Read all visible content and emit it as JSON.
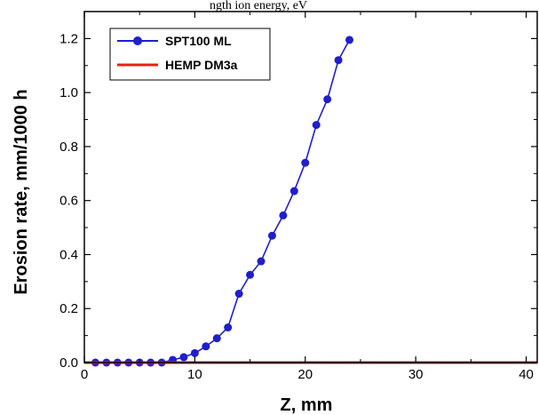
{
  "chart_data": {
    "type": "line",
    "title": "",
    "top_caption": "ngth  ion energy, eV",
    "xlabel": "Z, mm",
    "ylabel": "Erosion rate, mm/1000 h",
    "xlim": [
      0,
      41
    ],
    "ylim": [
      0,
      1.3
    ],
    "xticks": [
      0,
      10,
      20,
      30,
      40
    ],
    "yticks": [
      0.0,
      0.2,
      0.4,
      0.6,
      0.8,
      1.0,
      1.2
    ],
    "xtick_labels": [
      "0",
      "10",
      "20",
      "30",
      "40"
    ],
    "ytick_labels": [
      "0.0",
      "0.2",
      "0.4",
      "0.6",
      "0.8",
      "1.0",
      "1.2"
    ],
    "grid": false,
    "legend_position": "top-left",
    "series": [
      {
        "name": "SPT100 ML",
        "color": "#1f1fcc",
        "marker": "circle",
        "x": [
          1,
          2,
          3,
          4,
          5,
          6,
          7,
          8,
          9,
          10,
          11,
          12,
          13,
          14,
          15,
          16,
          17,
          18,
          19,
          20,
          21,
          22,
          23,
          24
        ],
        "y": [
          0.0,
          0.0,
          0.0,
          0.0,
          0.0,
          0.0,
          0.0,
          0.01,
          0.02,
          0.035,
          0.06,
          0.09,
          0.13,
          0.255,
          0.325,
          0.375,
          0.47,
          0.545,
          0.635,
          0.74,
          0.88,
          0.975,
          1.12,
          1.195
        ]
      },
      {
        "name": "HEMP DM3a",
        "color": "#e8201a",
        "marker": "none",
        "x": [
          0,
          41
        ],
        "y": [
          0,
          0
        ]
      }
    ]
  }
}
